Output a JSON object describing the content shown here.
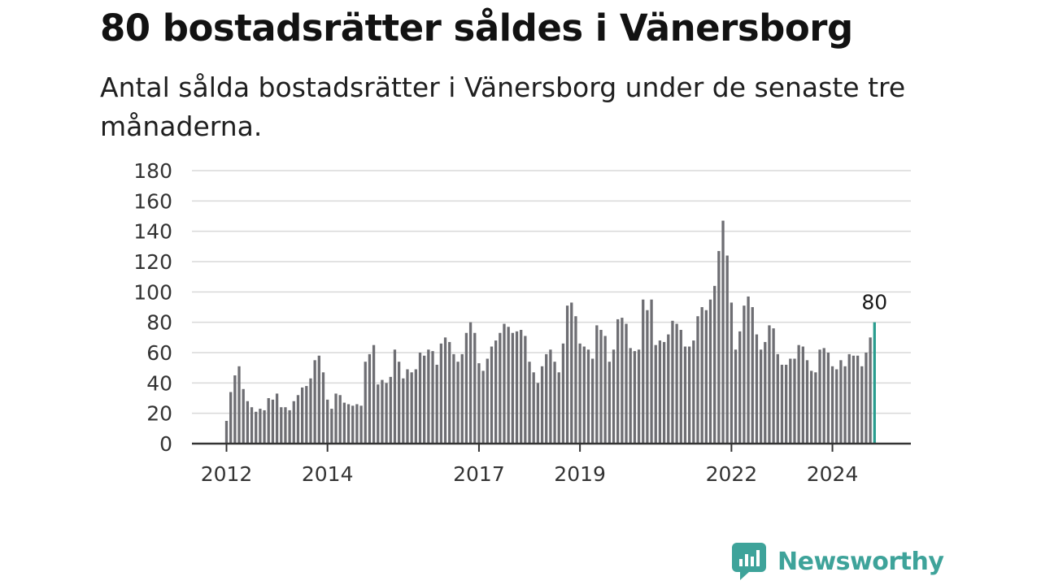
{
  "title": "80 bostadsrätter såldes i Vänersborg",
  "subtitle": "Antal sålda bostadsrätter i Vänersborg under de senaste tre månaderna.",
  "brand": {
    "name": "Newsworthy",
    "color": "#3ea39a"
  },
  "colors": {
    "bar": "#6e6e73",
    "highlight": "#2a9d8f",
    "grid": "#d9d9d9",
    "axis": "#333333"
  },
  "chart_data": {
    "type": "bar",
    "title": "80 bostadsrätter såldes i Vänersborg",
    "xlabel": "",
    "ylabel": "",
    "ylim": [
      0,
      180
    ],
    "yticks": [
      0,
      20,
      40,
      60,
      80,
      100,
      120,
      140,
      160,
      180
    ],
    "xtick_labels": [
      "2012",
      "2014",
      "2017",
      "2019",
      "2022",
      "2024"
    ],
    "start": "2012-01",
    "grid": true,
    "highlight_last": true,
    "last_label": "80",
    "values": [
      15,
      34,
      45,
      51,
      36,
      28,
      24,
      21,
      23,
      22,
      30,
      29,
      33,
      24,
      24,
      22,
      28,
      32,
      37,
      38,
      43,
      55,
      58,
      47,
      29,
      23,
      33,
      32,
      27,
      26,
      25,
      26,
      25,
      54,
      59,
      65,
      39,
      42,
      40,
      44,
      62,
      54,
      43,
      49,
      47,
      49,
      60,
      58,
      62,
      61,
      52,
      66,
      70,
      67,
      59,
      54,
      59,
      73,
      80,
      73,
      53,
      48,
      56,
      64,
      68,
      73,
      79,
      77,
      73,
      74,
      75,
      71,
      54,
      47,
      40,
      51,
      59,
      62,
      54,
      47,
      66,
      91,
      93,
      84,
      66,
      64,
      62,
      56,
      78,
      75,
      71,
      54,
      62,
      82,
      83,
      79,
      63,
      61,
      62,
      95,
      88,
      95,
      65,
      68,
      67,
      72,
      81,
      79,
      75,
      64,
      64,
      68,
      84,
      90,
      88,
      95,
      104,
      127,
      147,
      124,
      93,
      62,
      74,
      91,
      97,
      90,
      72,
      62,
      67,
      78,
      76,
      59,
      52,
      52,
      56,
      56,
      65,
      64,
      55,
      48,
      47,
      62,
      63,
      60,
      51,
      49,
      55,
      51,
      59,
      58,
      58,
      51,
      60,
      70,
      80
    ]
  }
}
